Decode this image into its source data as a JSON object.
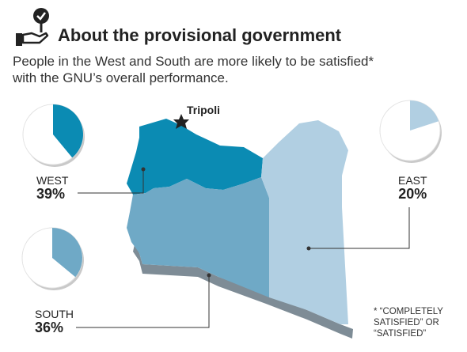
{
  "header": {
    "title": "About the provisional government",
    "subtitle_line1": "People in the West and South are more likely to be satisfied*",
    "subtitle_line2": "with the GNU’s overall performance."
  },
  "map": {
    "city_label": "Tripoli"
  },
  "footnote": {
    "line1": "* “COMPLETELY",
    "line2": "SATISFIED” OR",
    "line3": "“SATISFIED”"
  },
  "colors": {
    "west": "#0b8bb3",
    "south": "#6fa9c6",
    "east": "#b1cfe2",
    "pie_background": "#ffffff"
  },
  "chart_data": {
    "type": "pie",
    "series": [
      {
        "name": "WEST",
        "label": "39%",
        "value": 39
      },
      {
        "name": "EAST",
        "label": "20%",
        "value": 20
      },
      {
        "name": "SOUTH",
        "label": "36%",
        "value": 36
      }
    ]
  }
}
